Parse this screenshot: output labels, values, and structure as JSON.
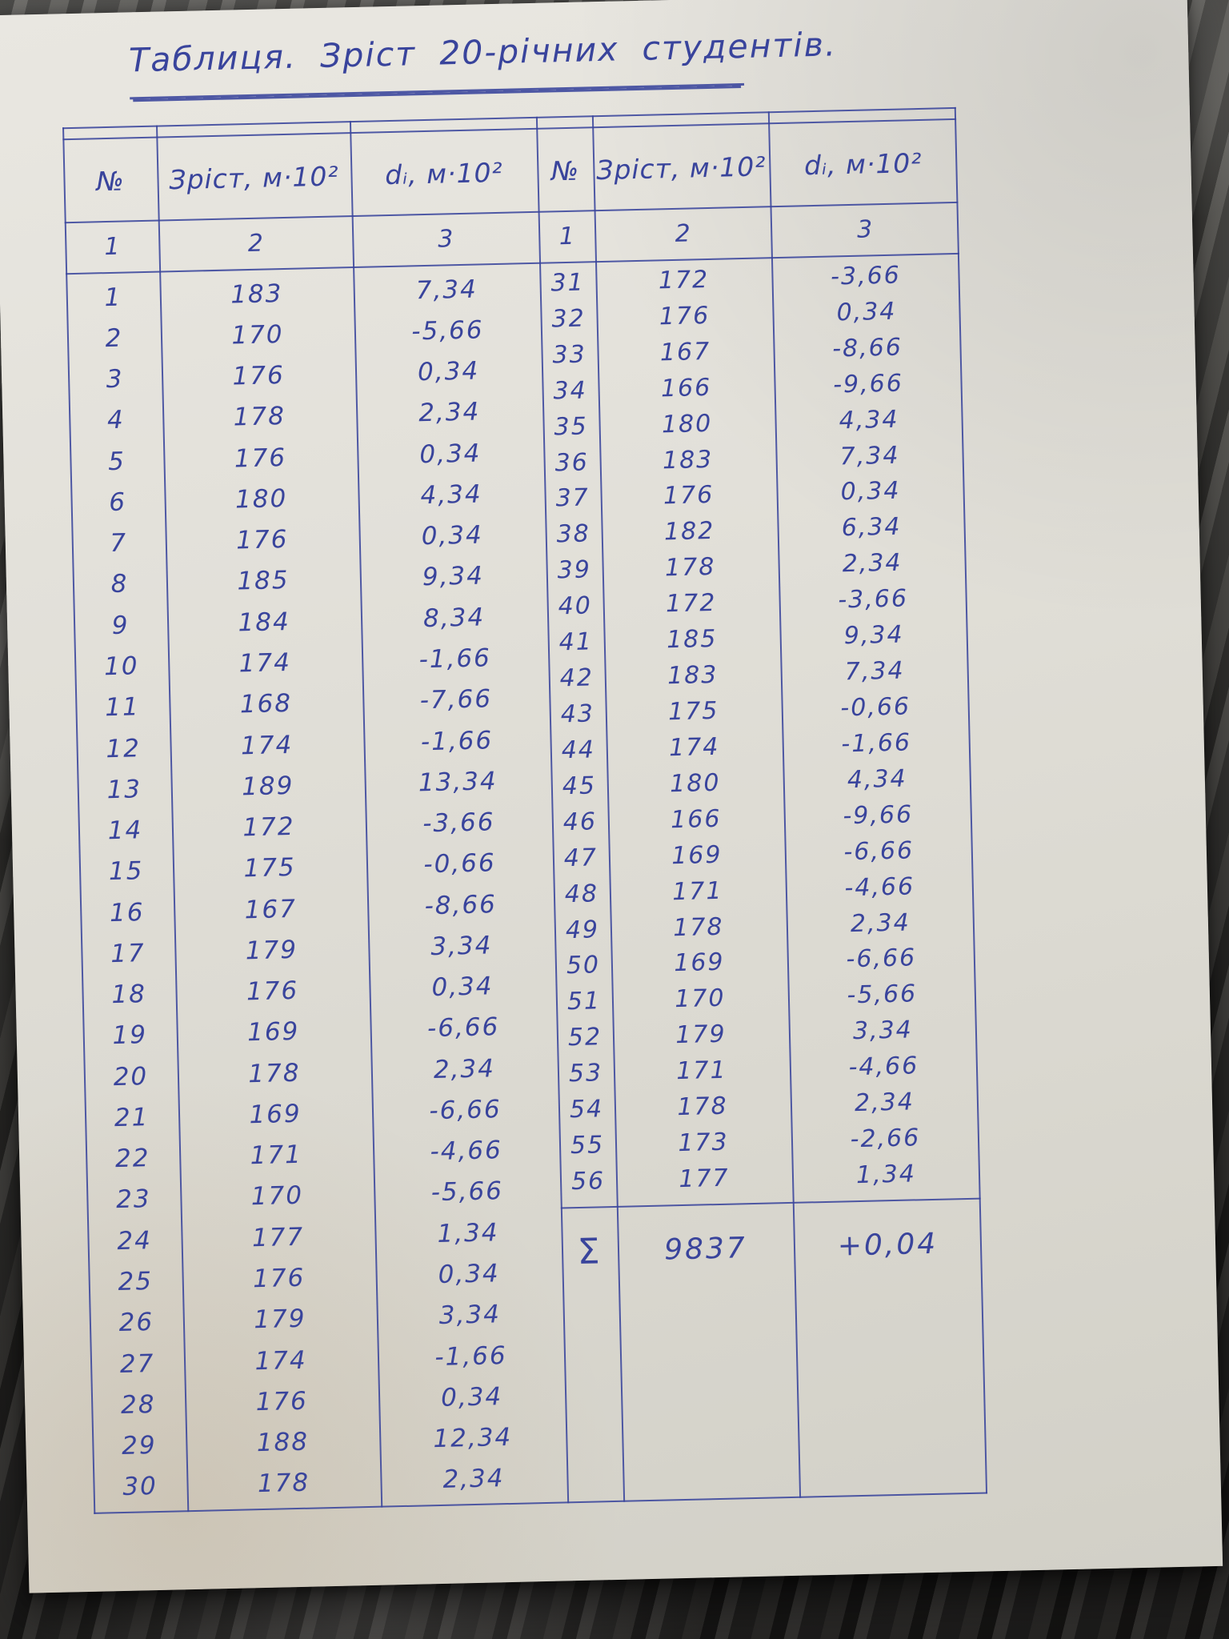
{
  "title": "Таблиця.  Зріст 20-річних студентів.",
  "ink_color": "#39449c",
  "table": {
    "headers": [
      "№",
      "Зріст, м·10²",
      "dᵢ, м·10²",
      "№",
      "Зріст, м·10²",
      "dᵢ, м·10²"
    ],
    "numbering": [
      "1",
      "2",
      "3",
      "1",
      "2",
      "3"
    ],
    "left_rows": [
      {
        "n": "1",
        "h": "183",
        "d": "7,34"
      },
      {
        "n": "2",
        "h": "170",
        "d": "-5,66"
      },
      {
        "n": "3",
        "h": "176",
        "d": "0,34"
      },
      {
        "n": "4",
        "h": "178",
        "d": "2,34"
      },
      {
        "n": "5",
        "h": "176",
        "d": "0,34"
      },
      {
        "n": "6",
        "h": "180",
        "d": "4,34"
      },
      {
        "n": "7",
        "h": "176",
        "d": "0,34"
      },
      {
        "n": "8",
        "h": "185",
        "d": "9,34"
      },
      {
        "n": "9",
        "h": "184",
        "d": "8,34"
      },
      {
        "n": "10",
        "h": "174",
        "d": "-1,66"
      },
      {
        "n": "11",
        "h": "168",
        "d": "-7,66"
      },
      {
        "n": "12",
        "h": "174",
        "d": "-1,66"
      },
      {
        "n": "13",
        "h": "189",
        "d": "13,34"
      },
      {
        "n": "14",
        "h": "172",
        "d": "-3,66"
      },
      {
        "n": "15",
        "h": "175",
        "d": "-0,66"
      },
      {
        "n": "16",
        "h": "167",
        "d": "-8,66"
      },
      {
        "n": "17",
        "h": "179",
        "d": "3,34"
      },
      {
        "n": "18",
        "h": "176",
        "d": "0,34"
      },
      {
        "n": "19",
        "h": "169",
        "d": "-6,66"
      },
      {
        "n": "20",
        "h": "178",
        "d": "2,34"
      },
      {
        "n": "21",
        "h": "169",
        "d": "-6,66"
      },
      {
        "n": "22",
        "h": "171",
        "d": "-4,66"
      },
      {
        "n": "23",
        "h": "170",
        "d": "-5,66"
      },
      {
        "n": "24",
        "h": "177",
        "d": "1,34"
      },
      {
        "n": "25",
        "h": "176",
        "d": "0,34"
      },
      {
        "n": "26",
        "h": "179",
        "d": "3,34"
      },
      {
        "n": "27",
        "h": "174",
        "d": "-1,66"
      },
      {
        "n": "28",
        "h": "176",
        "d": "0,34"
      },
      {
        "n": "29",
        "h": "188",
        "d": "12,34"
      },
      {
        "n": "30",
        "h": "178",
        "d": "2,34"
      }
    ],
    "right_rows": [
      {
        "n": "31",
        "h": "172",
        "d": "-3,66"
      },
      {
        "n": "32",
        "h": "176",
        "d": "0,34"
      },
      {
        "n": "33",
        "h": "167",
        "d": "-8,66"
      },
      {
        "n": "34",
        "h": "166",
        "d": "-9,66"
      },
      {
        "n": "35",
        "h": "180",
        "d": "4,34"
      },
      {
        "n": "36",
        "h": "183",
        "d": "7,34"
      },
      {
        "n": "37",
        "h": "176",
        "d": "0,34"
      },
      {
        "n": "38",
        "h": "182",
        "d": "6,34"
      },
      {
        "n": "39",
        "h": "178",
        "d": "2,34"
      },
      {
        "n": "40",
        "h": "172",
        "d": "-3,66"
      },
      {
        "n": "41",
        "h": "185",
        "d": "9,34"
      },
      {
        "n": "42",
        "h": "183",
        "d": "7,34"
      },
      {
        "n": "43",
        "h": "175",
        "d": "-0,66"
      },
      {
        "n": "44",
        "h": "174",
        "d": "-1,66"
      },
      {
        "n": "45",
        "h": "180",
        "d": "4,34"
      },
      {
        "n": "46",
        "h": "166",
        "d": "-9,66"
      },
      {
        "n": "47",
        "h": "169",
        "d": "-6,66"
      },
      {
        "n": "48",
        "h": "171",
        "d": "-4,66"
      },
      {
        "n": "49",
        "h": "178",
        "d": "2,34"
      },
      {
        "n": "50",
        "h": "169",
        "d": "-6,66"
      },
      {
        "n": "51",
        "h": "170",
        "d": "-5,66"
      },
      {
        "n": "52",
        "h": "179",
        "d": "3,34"
      },
      {
        "n": "53",
        "h": "171",
        "d": "-4,66"
      },
      {
        "n": "54",
        "h": "178",
        "d": "2,34"
      },
      {
        "n": "55",
        "h": "173",
        "d": "-2,66"
      },
      {
        "n": "56",
        "h": "177",
        "d": "1,34"
      }
    ],
    "sum_row": {
      "symbol": "Σ",
      "h": "9837",
      "d": "+0,04"
    }
  }
}
